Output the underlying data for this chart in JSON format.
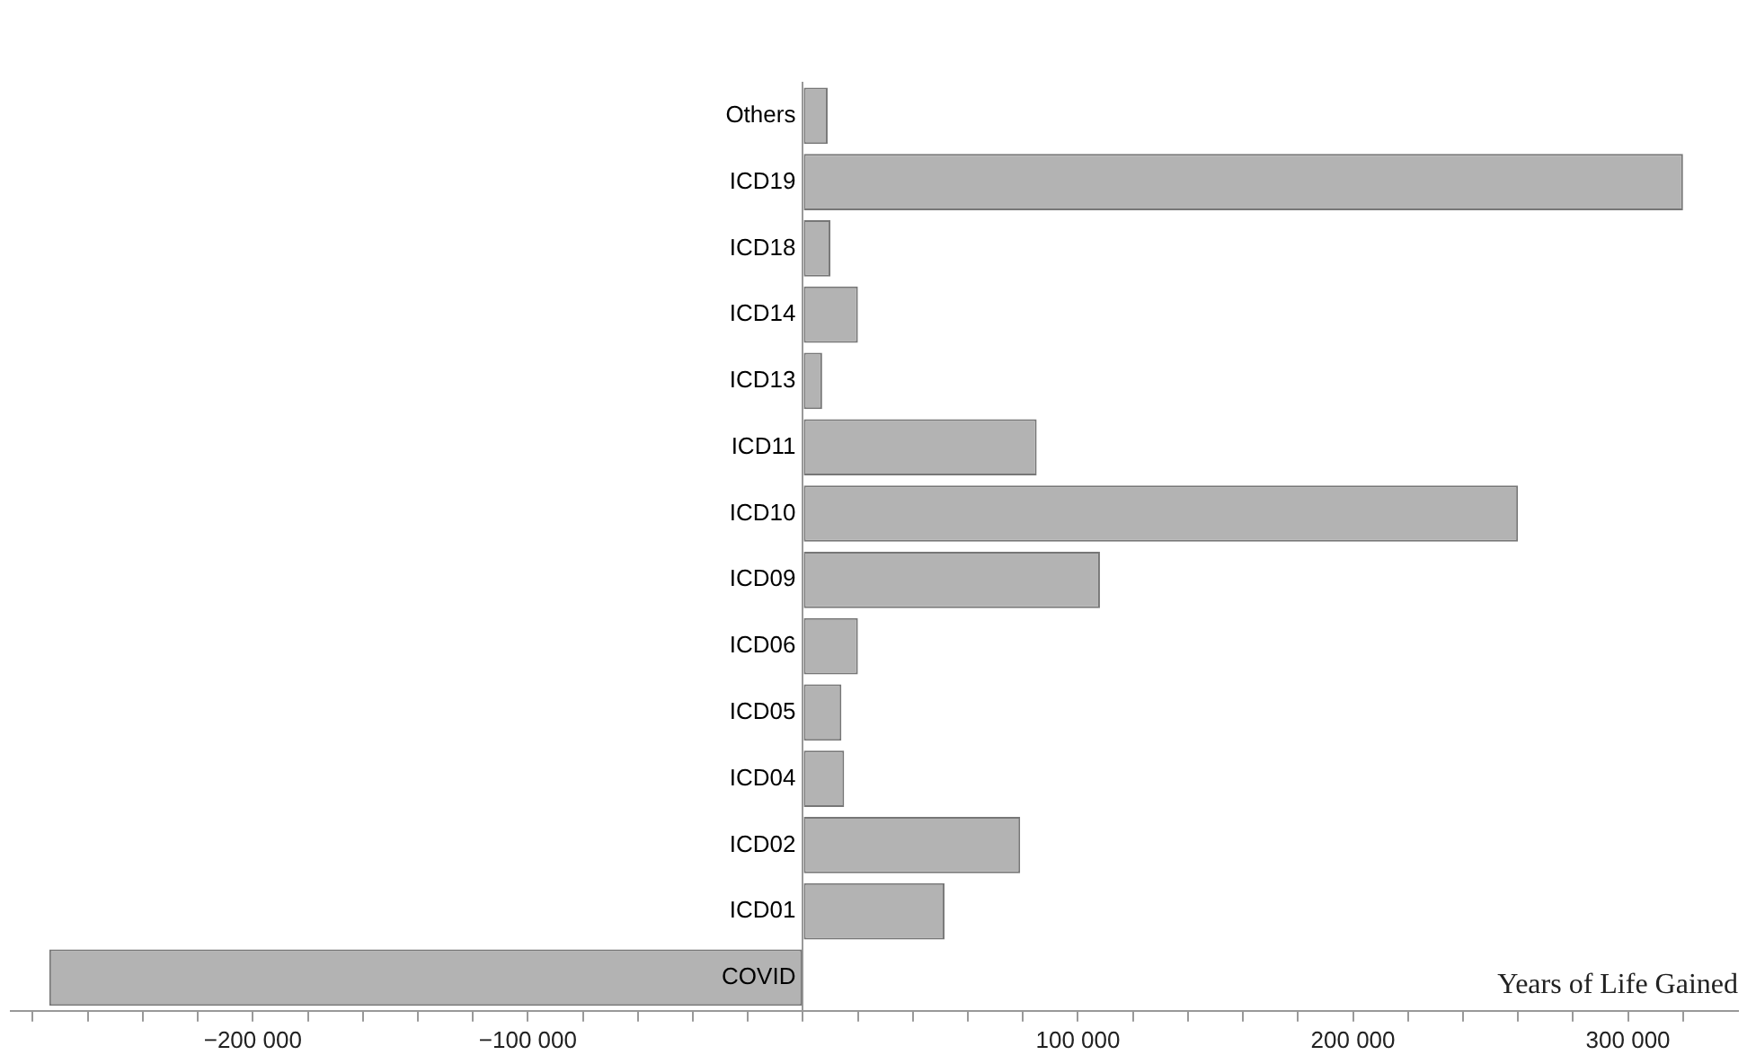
{
  "chart_data": {
    "type": "bar",
    "orientation": "horizontal",
    "xlabel": "Years of Life Gained",
    "categories": [
      "Others",
      "ICD19",
      "ICD18",
      "ICD14",
      "ICD13",
      "ICD11",
      "ICD10",
      "ICD09",
      "ICD06",
      "ICD05",
      "ICD04",
      "ICD02",
      "ICD01",
      "COVID"
    ],
    "values": [
      9000,
      320000,
      10000,
      20000,
      7000,
      85000,
      260000,
      108000,
      20000,
      14000,
      15000,
      79000,
      51500,
      -274000
    ],
    "color": "#b3b3b3",
    "xlim": [
      -288000,
      340000
    ],
    "xticks": [
      {
        "value": -280000,
        "label": null
      },
      {
        "value": -260000,
        "label": null
      },
      {
        "value": -240000,
        "label": null
      },
      {
        "value": -220000,
        "label": null
      },
      {
        "value": -200000,
        "label": "−200 000"
      },
      {
        "value": -180000,
        "label": null
      },
      {
        "value": -160000,
        "label": null
      },
      {
        "value": -140000,
        "label": null
      },
      {
        "value": -120000,
        "label": null
      },
      {
        "value": -100000,
        "label": "−100 000"
      },
      {
        "value": -80000,
        "label": null
      },
      {
        "value": -60000,
        "label": null
      },
      {
        "value": -40000,
        "label": null
      },
      {
        "value": -20000,
        "label": null
      },
      {
        "value": 0,
        "label": null
      },
      {
        "value": 20000,
        "label": null
      },
      {
        "value": 40000,
        "label": null
      },
      {
        "value": 60000,
        "label": null
      },
      {
        "value": 80000,
        "label": null
      },
      {
        "value": 100000,
        "label": "100 000"
      },
      {
        "value": 120000,
        "label": null
      },
      {
        "value": 140000,
        "label": null
      },
      {
        "value": 160000,
        "label": null
      },
      {
        "value": 180000,
        "label": null
      },
      {
        "value": 200000,
        "label": "200 000"
      },
      {
        "value": 220000,
        "label": null
      },
      {
        "value": 240000,
        "label": null
      },
      {
        "value": 260000,
        "label": null
      },
      {
        "value": 280000,
        "label": null
      },
      {
        "value": 300000,
        "label": "300 000"
      },
      {
        "value": 320000,
        "label": null
      }
    ],
    "grid": false,
    "legend": false
  }
}
